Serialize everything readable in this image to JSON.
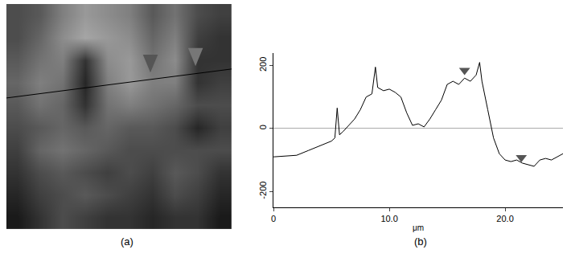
{
  "chart_data": [
    {
      "type": "heatmap",
      "caption": "(a)",
      "tick_labels": false,
      "zlim": [
        0,
        1
      ],
      "cells": [
        [
          0.3,
          0.35,
          0.5,
          0.6,
          0.55,
          0.5,
          0.35,
          0.45,
          0.3,
          0.25
        ],
        [
          0.3,
          0.4,
          0.55,
          0.65,
          0.6,
          0.55,
          0.4,
          0.5,
          0.25,
          0.2
        ],
        [
          0.35,
          0.45,
          0.5,
          0.2,
          0.55,
          0.6,
          0.45,
          0.55,
          0.2,
          0.2
        ],
        [
          0.4,
          0.5,
          0.45,
          0.15,
          0.5,
          0.6,
          0.5,
          0.5,
          0.2,
          0.25
        ],
        [
          0.35,
          0.45,
          0.4,
          0.2,
          0.45,
          0.5,
          0.45,
          0.4,
          0.3,
          0.3
        ],
        [
          0.3,
          0.35,
          0.4,
          0.35,
          0.4,
          0.35,
          0.35,
          0.3,
          0.15,
          0.25
        ],
        [
          0.25,
          0.4,
          0.45,
          0.4,
          0.35,
          0.3,
          0.3,
          0.3,
          0.3,
          0.3
        ],
        [
          0.2,
          0.3,
          0.35,
          0.3,
          0.25,
          0.3,
          0.25,
          0.35,
          0.3,
          0.2
        ],
        [
          0.15,
          0.25,
          0.3,
          0.35,
          0.3,
          0.25,
          0.2,
          0.3,
          0.25,
          0.15
        ],
        [
          0.1,
          0.2,
          0.3,
          0.25,
          0.2,
          0.2,
          0.15,
          0.2,
          0.2,
          0.1
        ]
      ]
    },
    {
      "type": "line",
      "caption": "(b)",
      "x_label": "μm",
      "color": "#000000",
      "x": [
        0,
        1,
        2,
        3,
        4,
        5,
        5.3,
        5.5,
        5.7,
        6,
        6.5,
        7,
        7.5,
        8,
        8.5,
        8.8,
        9,
        9.5,
        10,
        10.5,
        11,
        11.5,
        12,
        12.5,
        13,
        13.5,
        14,
        14.5,
        15,
        15.5,
        16,
        16.5,
        17,
        17.5,
        17.8,
        18,
        18.5,
        19,
        19.5,
        20,
        20.5,
        21,
        21.5,
        22,
        22.5,
        23,
        23.5,
        24,
        25
      ],
      "values": [
        -90,
        -88,
        -85,
        -70,
        -55,
        -40,
        -30,
        65,
        -20,
        -10,
        10,
        30,
        60,
        100,
        110,
        195,
        130,
        120,
        125,
        115,
        100,
        50,
        10,
        15,
        5,
        30,
        60,
        90,
        140,
        150,
        140,
        160,
        150,
        170,
        210,
        150,
        60,
        -30,
        -80,
        -100,
        -105,
        -100,
        -110,
        -115,
        -120,
        -100,
        -95,
        -100,
        -80
      ],
      "markers": {
        "x": [
          16.5,
          21.4
        ],
        "values": [
          185,
          -92
        ],
        "color": "#555555",
        "marker": "triangle-down"
      },
      "xlim": [
        0,
        25
      ],
      "xticks": [
        0,
        {
          "value": 10,
          "label": "10.0"
        },
        {
          "value": 20,
          "label": "20.0"
        }
      ],
      "ylim": [
        -250,
        240
      ],
      "yticks": [
        -200,
        0,
        200
      ],
      "grid": false
    }
  ]
}
